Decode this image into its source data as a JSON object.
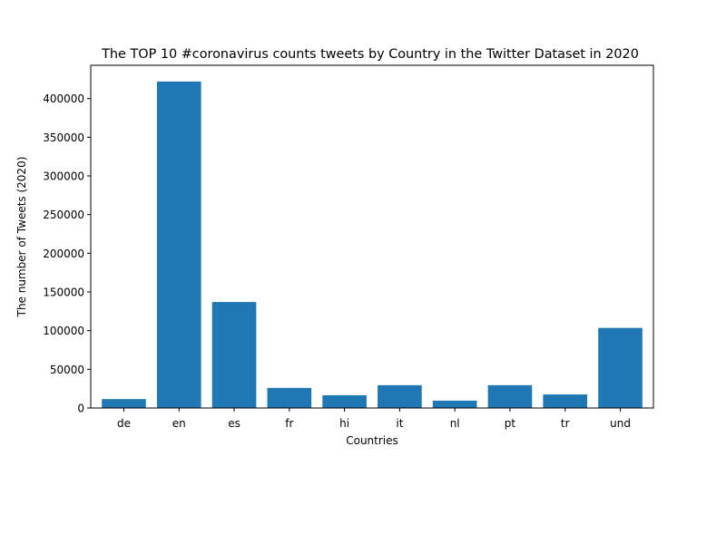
{
  "chart_data": {
    "type": "bar",
    "title": "The TOP 10 #coronavirus counts tweets by Country in the Twitter Dataset in 2020",
    "xlabel": "Countries",
    "ylabel": "The number of Tweets (2020)",
    "categories": [
      "de",
      "en",
      "es",
      "fr",
      "hi",
      "it",
      "nl",
      "pt",
      "tr",
      "und"
    ],
    "values": [
      11500,
      422000,
      137000,
      26000,
      16500,
      29500,
      9500,
      29500,
      17500,
      103500
    ],
    "ylim": [
      0,
      443000
    ],
    "yticks": [
      0,
      50000,
      100000,
      150000,
      200000,
      250000,
      300000,
      350000,
      400000
    ],
    "ytick_labels": [
      "0",
      "50000",
      "100000",
      "150000",
      "200000",
      "250000",
      "300000",
      "350000",
      "400000"
    ],
    "grid": false,
    "bar_color": "#1f77b4"
  }
}
